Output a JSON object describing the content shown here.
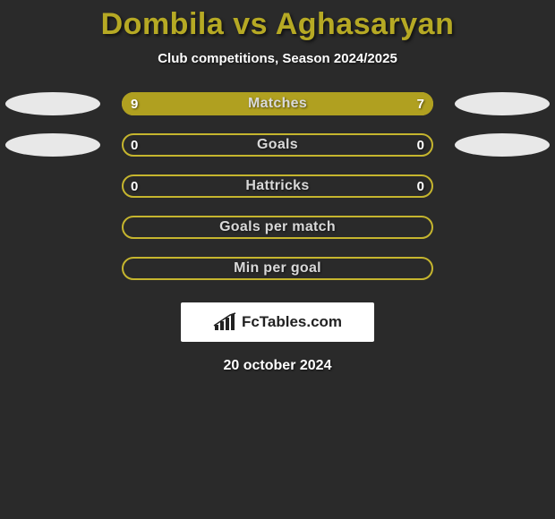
{
  "colors": {
    "background": "#2a2a2a",
    "accent": "#b0a020",
    "accent_border": "#c5b52e",
    "label_text": "#d9d9d9",
    "title_p1": "#b6a924",
    "title_vs": "#b6a924",
    "title_p2": "#b6a924",
    "white": "#ffffff"
  },
  "title": {
    "player1": "Dombila",
    "vs": "vs",
    "player2": "Aghasaryan"
  },
  "subtitle": "Club competitions, Season 2024/2025",
  "stats": [
    {
      "label": "Matches",
      "left_val": "9",
      "right_val": "7",
      "left_pct": 56,
      "right_pct": 44,
      "show_avatars": true,
      "show_vals": true
    },
    {
      "label": "Goals",
      "left_val": "0",
      "right_val": "0",
      "left_pct": 0,
      "right_pct": 0,
      "show_avatars": true,
      "show_vals": true
    },
    {
      "label": "Hattricks",
      "left_val": "0",
      "right_val": "0",
      "left_pct": 0,
      "right_pct": 0,
      "show_avatars": false,
      "show_vals": true
    },
    {
      "label": "Goals per match",
      "left_val": "",
      "right_val": "",
      "left_pct": 0,
      "right_pct": 0,
      "show_avatars": false,
      "show_vals": false
    },
    {
      "label": "Min per goal",
      "left_val": "",
      "right_val": "",
      "left_pct": 0,
      "right_pct": 0,
      "show_avatars": false,
      "show_vals": false
    }
  ],
  "brand": "FcTables.com",
  "date": "20 october 2024"
}
